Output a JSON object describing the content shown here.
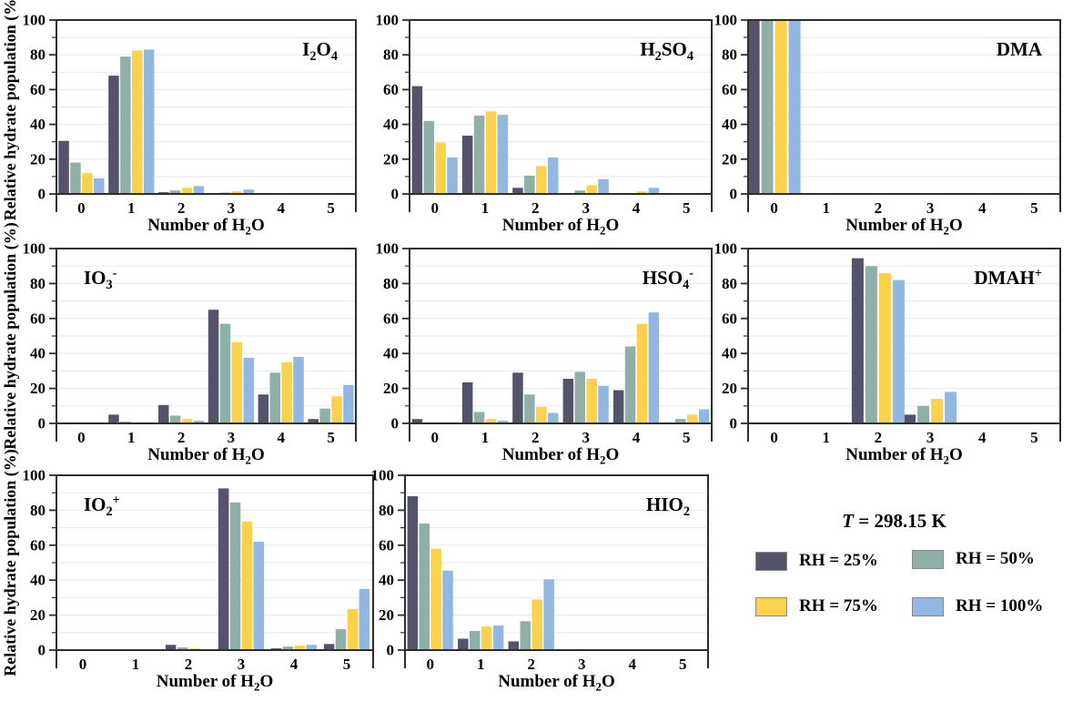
{
  "chart_data": {
    "type": "bar",
    "grouped": true,
    "categories": [
      "0",
      "1",
      "2",
      "3",
      "4",
      "5"
    ],
    "xlabel": "Number of H_2O",
    "ylabel": "Relative hydrate population (%)",
    "ylim": [
      0,
      100
    ],
    "yticks": [
      0,
      20,
      40,
      60,
      80,
      100
    ],
    "grid_step": 10,
    "grid_on": true,
    "series_names": [
      "RH = 25%",
      "RH = 50%",
      "RH = 75%",
      "RH = 100%"
    ],
    "series_colors": [
      "#53546a",
      "#8fb0a9",
      "#fcd24c",
      "#92b7e0"
    ],
    "panels": [
      {
        "title": "I_2O_4",
        "title_side": "right",
        "series": [
          [
            30.5,
            68,
            1,
            0.5,
            0,
            0
          ],
          [
            18,
            79,
            2,
            0.8,
            0,
            0
          ],
          [
            12,
            82.5,
            3.5,
            1.5,
            0,
            0
          ],
          [
            9,
            83,
            4.5,
            2.5,
            0,
            0
          ]
        ]
      },
      {
        "title": "H_2SO_4",
        "title_side": "right",
        "series": [
          [
            62,
            33.5,
            3.5,
            0.3,
            0.2,
            0
          ],
          [
            42,
            45,
            10.5,
            2,
            0.6,
            0
          ],
          [
            29.5,
            47.5,
            16,
            5,
            1.5,
            0
          ],
          [
            21,
            45.5,
            21,
            8.5,
            3.5,
            0
          ]
        ]
      },
      {
        "title": "DMA",
        "title_side": "right",
        "series": [
          [
            100,
            0,
            0,
            0,
            0,
            0
          ],
          [
            100,
            0,
            0,
            0,
            0,
            0
          ],
          [
            100,
            0,
            0,
            0,
            0,
            0
          ],
          [
            99.5,
            0.5,
            0,
            0,
            0,
            0
          ]
        ]
      },
      {
        "title": "IO_3^-",
        "title_side": "left",
        "series": [
          [
            0,
            5,
            10.5,
            65,
            16.5,
            2.5
          ],
          [
            0,
            1,
            4.5,
            57,
            29,
            8.5
          ],
          [
            0,
            0.3,
            2.5,
            46.5,
            35,
            15.5
          ],
          [
            0,
            0.2,
            1.5,
            37.5,
            38,
            22
          ]
        ]
      },
      {
        "title": "HSO_4^-",
        "title_side": "right",
        "series": [
          [
            2.5,
            23.5,
            29,
            25.5,
            19,
            0.5
          ],
          [
            0.3,
            6.5,
            16.5,
            29.5,
            44,
            2.5
          ],
          [
            0,
            2.5,
            9.5,
            25.5,
            57,
            5
          ],
          [
            0,
            1.5,
            6,
            21.5,
            63.5,
            8
          ]
        ]
      },
      {
        "title": "DMAH^+",
        "title_side": "right",
        "series": [
          [
            0,
            0,
            94.5,
            5,
            0,
            0
          ],
          [
            0,
            0,
            90,
            10,
            0,
            0
          ],
          [
            0,
            0,
            86,
            14,
            0,
            0
          ],
          [
            0,
            0,
            82,
            18,
            0,
            0
          ]
        ]
      },
      {
        "title": "IO_2^+",
        "title_side": "left",
        "series": [
          [
            0,
            0,
            3,
            92.5,
            1,
            3.5
          ],
          [
            0,
            0,
            1.5,
            84.5,
            2,
            12
          ],
          [
            0,
            0,
            1,
            73.5,
            2.5,
            23.5
          ],
          [
            0,
            0,
            0.5,
            62,
            3,
            35
          ]
        ]
      },
      {
        "title": "HIO_2",
        "title_side": "right",
        "series": [
          [
            88,
            6.5,
            5,
            0,
            0,
            0
          ],
          [
            72.5,
            11,
            16.5,
            0,
            0,
            0
          ],
          [
            58,
            13.5,
            29,
            0,
            0,
            0
          ],
          [
            45.5,
            14,
            40.5,
            0,
            0,
            0
          ]
        ]
      }
    ]
  },
  "legend": {
    "symbol": "T",
    "temperature": " = 298.15 K",
    "items": [
      {
        "label": "RH = 25%",
        "color": "#53546a"
      },
      {
        "label": "RH = 50%",
        "color": "#8fb0a9"
      },
      {
        "label": "RH = 75%",
        "color": "#fcd24c"
      },
      {
        "label": "RH = 100%",
        "color": "#92b7e0"
      }
    ]
  }
}
